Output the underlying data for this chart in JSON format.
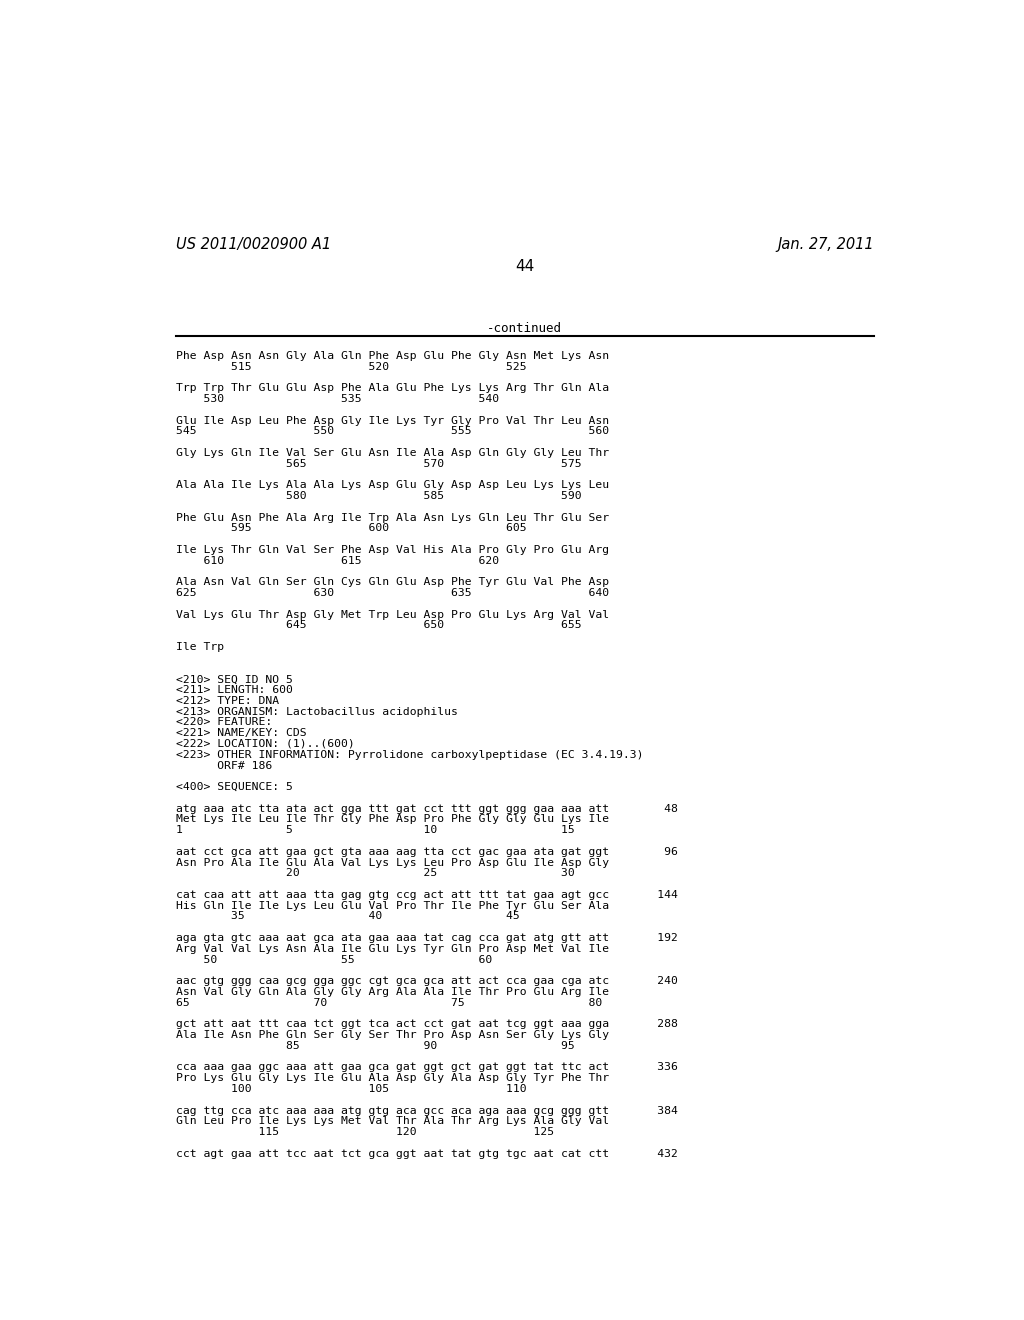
{
  "page_left": "US 2011/0020900 A1",
  "page_right": "Jan. 27, 2011",
  "page_number": "44",
  "continued_label": "-continued",
  "background_color": "#ffffff",
  "text_color": "#000000",
  "lines": [
    {
      "text": "Phe Asp Asn Asn Gly Ala Gln Phe Asp Glu Phe Gly Asn Met Lys Asn",
      "blank_after": false
    },
    {
      "text": "        515                 520                 525",
      "blank_after": true
    },
    {
      "text": "Trp Trp Thr Glu Glu Asp Phe Ala Glu Phe Lys Lys Arg Thr Gln Ala",
      "blank_after": false
    },
    {
      "text": "    530                 535                 540",
      "blank_after": true
    },
    {
      "text": "Glu Ile Asp Leu Phe Asp Gly Ile Lys Tyr Gly Pro Val Thr Leu Asn",
      "blank_after": false
    },
    {
      "text": "545                 550                 555                 560",
      "blank_after": true
    },
    {
      "text": "Gly Lys Gln Ile Val Ser Glu Asn Ile Ala Asp Gln Gly Gly Leu Thr",
      "blank_after": false
    },
    {
      "text": "                565                 570                 575",
      "blank_after": true
    },
    {
      "text": "Ala Ala Ile Lys Ala Ala Lys Asp Glu Gly Asp Asp Leu Lys Lys Leu",
      "blank_after": false
    },
    {
      "text": "                580                 585                 590",
      "blank_after": true
    },
    {
      "text": "Phe Glu Asn Phe Ala Arg Ile Trp Ala Asn Lys Gln Leu Thr Glu Ser",
      "blank_after": false
    },
    {
      "text": "        595                 600                 605",
      "blank_after": true
    },
    {
      "text": "Ile Lys Thr Gln Val Ser Phe Asp Val His Ala Pro Gly Pro Glu Arg",
      "blank_after": false
    },
    {
      "text": "    610                 615                 620",
      "blank_after": true
    },
    {
      "text": "Ala Asn Val Gln Ser Gln Cys Gln Glu Asp Phe Tyr Glu Val Phe Asp",
      "blank_after": false
    },
    {
      "text": "625                 630                 635                 640",
      "blank_after": true
    },
    {
      "text": "Val Lys Glu Thr Asp Gly Met Trp Leu Asp Pro Glu Lys Arg Val Val",
      "blank_after": false
    },
    {
      "text": "                645                 650                 655",
      "blank_after": true
    },
    {
      "text": "Ile Trp",
      "blank_after": true
    },
    {
      "text": "",
      "blank_after": false
    },
    {
      "text": "<210> SEQ ID NO 5",
      "blank_after": false
    },
    {
      "text": "<211> LENGTH: 600",
      "blank_after": false
    },
    {
      "text": "<212> TYPE: DNA",
      "blank_after": false
    },
    {
      "text": "<213> ORGANISM: Lactobacillus acidophilus",
      "blank_after": false
    },
    {
      "text": "<220> FEATURE:",
      "blank_after": false
    },
    {
      "text": "<221> NAME/KEY: CDS",
      "blank_after": false
    },
    {
      "text": "<222> LOCATION: (1)..(600)",
      "blank_after": false
    },
    {
      "text": "<223> OTHER INFORMATION: Pyrrolidone carboxylpeptidase (EC 3.4.19.3)",
      "blank_after": false
    },
    {
      "text": "      ORF# 186",
      "blank_after": true
    },
    {
      "text": "<400> SEQUENCE: 5",
      "blank_after": true
    },
    {
      "text": "atg aaa atc tta ata act gga ttt gat cct ttt ggt ggg gaa aaa att        48",
      "blank_after": false
    },
    {
      "text": "Met Lys Ile Leu Ile Thr Gly Phe Asp Pro Phe Gly Gly Glu Lys Ile",
      "blank_after": false
    },
    {
      "text": "1               5                   10                  15",
      "blank_after": true
    },
    {
      "text": "aat cct gca att gaa gct gta aaa aag tta cct gac gaa ata gat ggt        96",
      "blank_after": false
    },
    {
      "text": "Asn Pro Ala Ile Glu Ala Val Lys Lys Leu Pro Asp Glu Ile Asp Gly",
      "blank_after": false
    },
    {
      "text": "                20                  25                  30",
      "blank_after": true
    },
    {
      "text": "cat caa att att aaa tta gag gtg ccg act att ttt tat gaa agt gcc       144",
      "blank_after": false
    },
    {
      "text": "His Gln Ile Ile Lys Leu Glu Val Pro Thr Ile Phe Tyr Glu Ser Ala",
      "blank_after": false
    },
    {
      "text": "        35                  40                  45",
      "blank_after": true
    },
    {
      "text": "aga gta gtc aaa aat gca ata gaa aaa tat cag cca gat atg gtt att       192",
      "blank_after": false
    },
    {
      "text": "Arg Val Val Lys Asn Ala Ile Glu Lys Tyr Gln Pro Asp Met Val Ile",
      "blank_after": false
    },
    {
      "text": "    50                  55                  60",
      "blank_after": true
    },
    {
      "text": "aac gtg ggg caa gcg gga ggc cgt gca gca att act cca gaa cga atc       240",
      "blank_after": false
    },
    {
      "text": "Asn Val Gly Gln Ala Gly Gly Arg Ala Ala Ile Thr Pro Glu Arg Ile",
      "blank_after": false
    },
    {
      "text": "65                  70                  75                  80",
      "blank_after": true
    },
    {
      "text": "gct att aat ttt caa tct ggt tca act cct gat aat tcg ggt aaa gga       288",
      "blank_after": false
    },
    {
      "text": "Ala Ile Asn Phe Gln Ser Gly Ser Thr Pro Asp Asn Ser Gly Lys Gly",
      "blank_after": false
    },
    {
      "text": "                85                  90                  95",
      "blank_after": true
    },
    {
      "text": "cca aaa gaa ggc aaa att gaa gca gat ggt gct gat ggt tat ttc act       336",
      "blank_after": false
    },
    {
      "text": "Pro Lys Glu Gly Lys Ile Glu Ala Asp Gly Ala Asp Gly Tyr Phe Thr",
      "blank_after": false
    },
    {
      "text": "        100                 105                 110",
      "blank_after": true
    },
    {
      "text": "cag ttg cca atc aaa aaa atg gtg aca gcc aca aga aaa gcg ggg gtt       384",
      "blank_after": false
    },
    {
      "text": "Gln Leu Pro Ile Lys Lys Met Val Thr Ala Thr Arg Lys Ala Gly Val",
      "blank_after": false
    },
    {
      "text": "            115                 120                 125",
      "blank_after": true
    },
    {
      "text": "cct agt gaa att tcc aat tct gca ggt aat tat gtg tgc aat cat ctt       432",
      "blank_after": false
    }
  ]
}
